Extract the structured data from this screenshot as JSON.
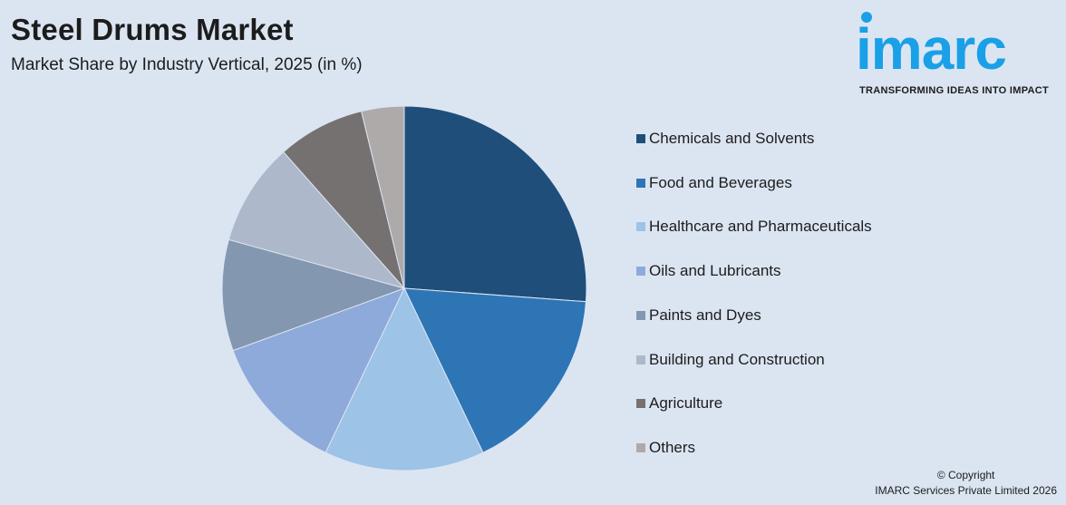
{
  "header": {
    "title": "Steel Drums Market",
    "subtitle": "Market Share by Industry Vertical, 2025 (in %)"
  },
  "logo": {
    "word": "imarc",
    "tagline": "TRANSFORMING IDEAS INTO IMPACT",
    "color": "#1aa0e6"
  },
  "footer": {
    "line1": "© Copyright",
    "line2": "IMARC Services Private Limited 2026"
  },
  "chart_data": {
    "type": "pie",
    "title": "Steel Drums Market",
    "subtitle": "Market Share by Industry Vertical, 2025 (in %)",
    "legend_position": "right",
    "series": [
      {
        "name": "Chemicals and Solvents",
        "value": 26.3,
        "color": "#1f4e7a"
      },
      {
        "name": "Food and Beverages",
        "value": 16.8,
        "color": "#2e75b6"
      },
      {
        "name": "Healthcare and Pharmaceuticals",
        "value": 14.3,
        "color": "#9dc3e6"
      },
      {
        "name": "Oils and Lubricants",
        "value": 12.4,
        "color": "#8eaadb"
      },
      {
        "name": "Paints and Dyes",
        "value": 9.9,
        "color": "#8497b0"
      },
      {
        "name": "Building and Construction",
        "value": 9.2,
        "color": "#adb9ca"
      },
      {
        "name": "Agriculture",
        "value": 7.8,
        "color": "#767171"
      },
      {
        "name": "Others",
        "value": 3.8,
        "color": "#aeaaaa"
      }
    ]
  }
}
